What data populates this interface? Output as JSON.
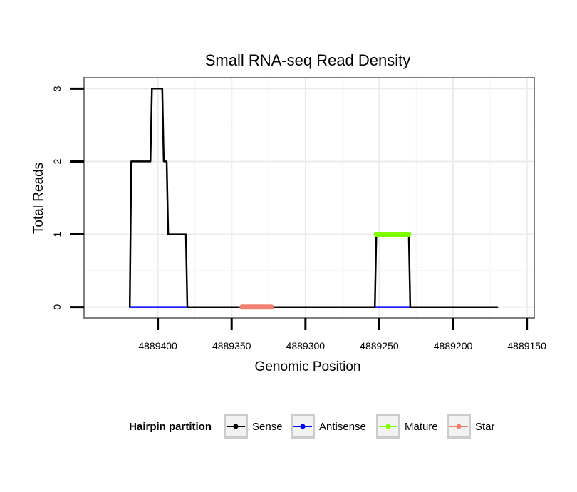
{
  "chart_data": {
    "type": "line",
    "title": "Small RNA-seq Read Density",
    "xlabel": "Genomic Position",
    "ylabel": "Total Reads",
    "x_reversed": true,
    "xlim": [
      4889450,
      4889145
    ],
    "ylim": [
      -0.15,
      3.15
    ],
    "x_ticks": [
      4889400,
      4889350,
      4889300,
      4889250,
      4889200,
      4889150
    ],
    "y_ticks": [
      0,
      1,
      2,
      3
    ],
    "grid": true,
    "series": [
      {
        "name": "Sense",
        "color": "#000000",
        "points": [
          [
            4889419,
            0
          ],
          [
            4889418,
            2
          ],
          [
            4889405,
            2
          ],
          [
            4889404,
            3
          ],
          [
            4889397,
            3
          ],
          [
            4889396,
            2
          ],
          [
            4889394,
            2
          ],
          [
            4889393,
            1
          ],
          [
            4889381,
            1
          ],
          [
            4889380,
            0
          ],
          [
            4889253,
            0
          ],
          [
            4889252,
            1
          ],
          [
            4889230,
            1
          ],
          [
            4889229,
            0
          ],
          [
            4889170,
            0
          ]
        ]
      },
      {
        "name": "Antisense",
        "color": "#0000ff",
        "points": [
          [
            4889419,
            0
          ],
          [
            4889380,
            0
          ],
          [
            4889253,
            0
          ],
          [
            4889229,
            0
          ]
        ]
      },
      {
        "name": "Mature",
        "color": "#7fff00",
        "points": [
          [
            4889252,
            1
          ],
          [
            4889230,
            1
          ]
        ]
      },
      {
        "name": "Star",
        "color": "#f08070",
        "points": [
          [
            4889343,
            0
          ],
          [
            4889323,
            0
          ]
        ]
      }
    ],
    "legend": {
      "title": "Hairpin partition",
      "position": "bottom",
      "entries": [
        "Sense",
        "Antisense",
        "Mature",
        "Star"
      ]
    }
  }
}
